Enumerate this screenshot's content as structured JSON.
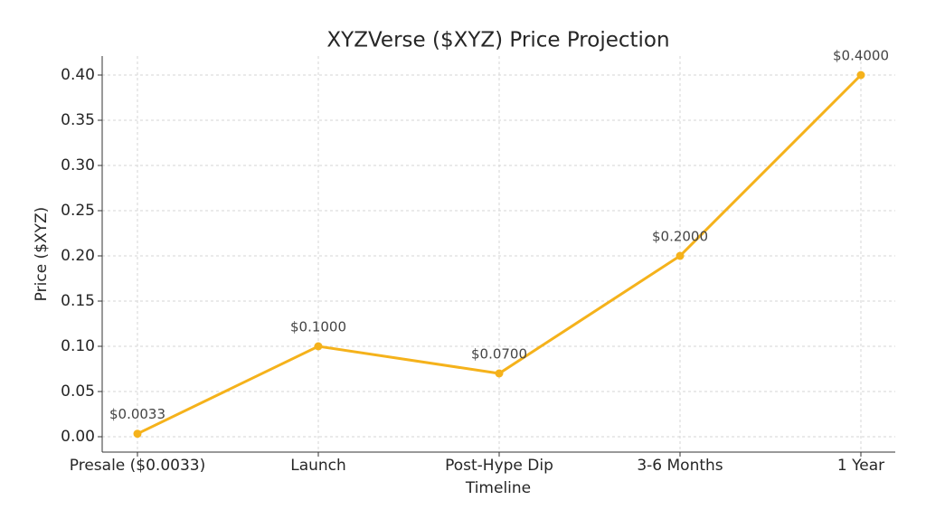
{
  "chart_data": {
    "type": "line",
    "title": "XYZVerse ($XYZ) Price Projection",
    "x_label": "Timeline",
    "y_label": "Price ($XYZ)",
    "categories": [
      "Presale ($0.0033)",
      "Launch",
      "Post-Hype Dip",
      "3-6 Months",
      "1 Year"
    ],
    "values": [
      0.0033,
      0.1,
      0.07,
      0.2,
      0.4
    ],
    "value_labels": [
      "$0.0033",
      "$0.1000",
      "$0.0700",
      "$0.2000",
      "$0.4000"
    ],
    "color": "#f5b21b",
    "ylim": [
      -0.017,
      0.421
    ],
    "yticks": [
      {
        "value": 0,
        "label": "0.00"
      },
      0.05,
      {
        "value": 0.1,
        "label": "0.10"
      },
      0.15,
      {
        "value": 0.2,
        "label": "0.20"
      },
      0.25,
      {
        "value": 0.3,
        "label": "0.30"
      },
      0.35,
      {
        "value": 0.4,
        "label": "0.40"
      }
    ],
    "grid": true
  }
}
